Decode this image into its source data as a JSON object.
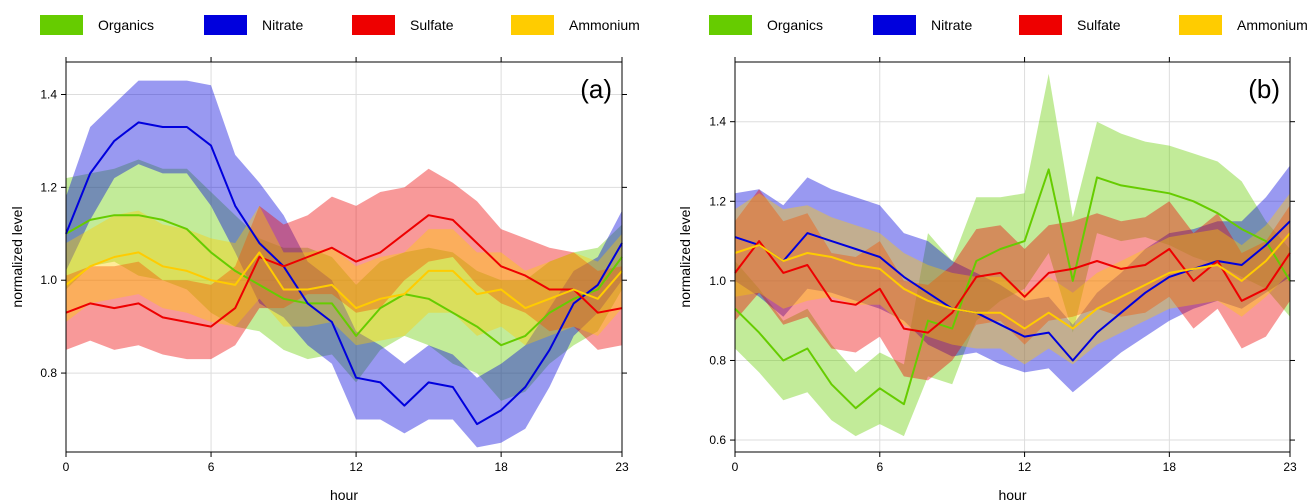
{
  "chart_data": [
    {
      "type": "line",
      "panel_label": "(a)",
      "xlabel": "hour",
      "ylabel": "normalized level",
      "xlim": [
        0,
        23
      ],
      "ylim": [
        0.63,
        1.47
      ],
      "x_ticks": [
        0,
        6,
        12,
        18,
        23
      ],
      "y_ticks": [
        0.8,
        1.0,
        1.2,
        1.4
      ],
      "x_tick_labels": [
        "0",
        "6",
        "12",
        "18",
        "23"
      ],
      "y_tick_labels": [
        "0.8",
        "1.0",
        "1.2",
        "1.4"
      ],
      "grid": true,
      "legend_position": "top",
      "x": [
        0,
        1,
        2,
        3,
        4,
        5,
        6,
        7,
        8,
        9,
        10,
        11,
        12,
        13,
        14,
        15,
        16,
        17,
        18,
        19,
        20,
        21,
        22,
        23
      ],
      "series": [
        {
          "name": "Organics",
          "color": "#66cc00",
          "values": [
            1.1,
            1.13,
            1.14,
            1.14,
            1.13,
            1.11,
            1.06,
            1.02,
            0.99,
            0.96,
            0.95,
            0.95,
            0.88,
            0.94,
            0.97,
            0.96,
            0.93,
            0.9,
            0.86,
            0.88,
            0.93,
            0.96,
            0.98,
            1.05
          ],
          "upper": [
            1.22,
            1.23,
            1.24,
            1.26,
            1.24,
            1.24,
            1.19,
            1.14,
            1.09,
            1.07,
            1.07,
            1.05,
            0.99,
            1.04,
            1.06,
            1.07,
            1.06,
            1.02,
            1.0,
            1.0,
            1.04,
            1.06,
            1.07,
            1.12
          ],
          "lower": [
            0.98,
            1.03,
            1.04,
            1.01,
            1.0,
            0.98,
            0.93,
            0.9,
            0.89,
            0.85,
            0.83,
            0.84,
            0.78,
            0.85,
            0.88,
            0.86,
            0.82,
            0.8,
            0.74,
            0.76,
            0.82,
            0.86,
            0.89,
            0.98
          ]
        },
        {
          "name": "Nitrate",
          "color": "#0000dd",
          "values": [
            1.1,
            1.23,
            1.3,
            1.34,
            1.33,
            1.33,
            1.29,
            1.16,
            1.08,
            1.03,
            0.95,
            0.91,
            0.79,
            0.78,
            0.73,
            0.78,
            0.77,
            0.69,
            0.72,
            0.77,
            0.85,
            0.95,
            0.99,
            1.08
          ],
          "upper": [
            1.18,
            1.33,
            1.38,
            1.43,
            1.43,
            1.43,
            1.42,
            1.27,
            1.21,
            1.14,
            1.04,
            1.0,
            0.89,
            0.86,
            0.82,
            0.86,
            0.84,
            0.79,
            0.82,
            0.86,
            0.94,
            1.02,
            1.05,
            1.15
          ],
          "lower": [
            1.02,
            1.13,
            1.22,
            1.25,
            1.23,
            1.23,
            1.16,
            1.06,
            0.95,
            0.92,
            0.86,
            0.82,
            0.7,
            0.7,
            0.67,
            0.7,
            0.7,
            0.64,
            0.65,
            0.68,
            0.77,
            0.88,
            0.93,
            1.0
          ]
        },
        {
          "name": "Sulfate",
          "color": "#ee0000",
          "values": [
            0.93,
            0.95,
            0.94,
            0.95,
            0.92,
            0.91,
            0.9,
            0.94,
            1.05,
            1.03,
            1.05,
            1.07,
            1.04,
            1.06,
            1.1,
            1.14,
            1.13,
            1.08,
            1.03,
            1.01,
            0.98,
            0.98,
            0.93,
            0.94
          ],
          "upper": [
            1.01,
            1.03,
            1.03,
            1.04,
            1.0,
            1.0,
            0.99,
            1.03,
            1.16,
            1.12,
            1.14,
            1.18,
            1.16,
            1.19,
            1.2,
            1.24,
            1.21,
            1.17,
            1.11,
            1.09,
            1.07,
            1.06,
            1.02,
            1.03
          ],
          "lower": [
            0.85,
            0.87,
            0.85,
            0.86,
            0.84,
            0.83,
            0.83,
            0.86,
            0.94,
            0.94,
            0.97,
            0.97,
            0.93,
            0.94,
            1.0,
            1.04,
            1.05,
            0.99,
            0.95,
            0.93,
            0.89,
            0.9,
            0.85,
            0.86
          ]
        },
        {
          "name": "Ammonium",
          "color": "#ffcc00",
          "values": [
            0.99,
            1.03,
            1.05,
            1.06,
            1.03,
            1.02,
            1.0,
            0.99,
            1.06,
            0.98,
            0.98,
            0.99,
            0.94,
            0.96,
            0.97,
            1.02,
            1.02,
            0.97,
            0.98,
            0.94,
            0.96,
            0.98,
            0.96,
            1.02
          ],
          "upper": [
            1.08,
            1.11,
            1.14,
            1.15,
            1.12,
            1.11,
            1.09,
            1.08,
            1.16,
            1.06,
            1.06,
            1.07,
            1.03,
            1.05,
            1.06,
            1.11,
            1.11,
            1.06,
            1.06,
            1.02,
            1.04,
            1.06,
            1.04,
            1.1
          ],
          "lower": [
            0.91,
            0.95,
            0.96,
            0.97,
            0.94,
            0.93,
            0.91,
            0.9,
            0.96,
            0.9,
            0.9,
            0.91,
            0.86,
            0.87,
            0.88,
            0.93,
            0.93,
            0.88,
            0.9,
            0.86,
            0.88,
            0.9,
            0.88,
            0.94
          ]
        }
      ]
    },
    {
      "type": "line",
      "panel_label": "(b)",
      "xlabel": "hour",
      "ylabel": "normalized level",
      "xlim": [
        0,
        23
      ],
      "ylim": [
        0.57,
        1.55
      ],
      "x_ticks": [
        0,
        6,
        12,
        18,
        23
      ],
      "y_ticks": [
        0.6,
        0.8,
        1.0,
        1.2,
        1.4
      ],
      "x_tick_labels": [
        "0",
        "6",
        "12",
        "18",
        "23"
      ],
      "y_tick_labels": [
        "0.6",
        "0.8",
        "1.0",
        "1.2",
        "1.4"
      ],
      "grid": true,
      "legend_position": "top",
      "x": [
        0,
        1,
        2,
        3,
        4,
        5,
        6,
        7,
        8,
        9,
        10,
        11,
        12,
        13,
        14,
        15,
        16,
        17,
        18,
        19,
        20,
        21,
        22,
        23
      ],
      "series": [
        {
          "name": "Organics",
          "color": "#66cc00",
          "values": [
            0.93,
            0.87,
            0.8,
            0.83,
            0.74,
            0.68,
            0.73,
            0.69,
            0.9,
            0.88,
            1.05,
            1.08,
            1.1,
            1.28,
            1.0,
            1.26,
            1.24,
            1.23,
            1.22,
            1.2,
            1.17,
            1.13,
            1.1,
            1.0
          ],
          "upper": [
            1.05,
            0.98,
            0.9,
            0.93,
            0.84,
            0.77,
            0.82,
            0.79,
            1.12,
            1.05,
            1.21,
            1.21,
            1.22,
            1.52,
            1.16,
            1.4,
            1.37,
            1.35,
            1.34,
            1.32,
            1.3,
            1.25,
            1.15,
            1.08
          ],
          "lower": [
            0.83,
            0.77,
            0.7,
            0.72,
            0.65,
            0.61,
            0.64,
            0.61,
            0.76,
            0.74,
            0.9,
            0.95,
            0.98,
            1.07,
            0.87,
            1.12,
            1.1,
            1.11,
            1.09,
            1.06,
            1.04,
            1.01,
            0.98,
            0.91
          ]
        },
        {
          "name": "Nitrate",
          "color": "#0000dd",
          "values": [
            1.11,
            1.09,
            1.05,
            1.12,
            1.1,
            1.08,
            1.06,
            1.01,
            0.97,
            0.93,
            0.92,
            0.89,
            0.86,
            0.87,
            0.8,
            0.87,
            0.92,
            0.97,
            1.01,
            1.03,
            1.05,
            1.04,
            1.09,
            1.15
          ],
          "upper": [
            1.22,
            1.23,
            1.19,
            1.26,
            1.23,
            1.21,
            1.19,
            1.12,
            1.1,
            1.05,
            1.02,
            0.99,
            0.95,
            0.96,
            0.89,
            0.97,
            1.02,
            1.08,
            1.12,
            1.13,
            1.15,
            1.15,
            1.21,
            1.29
          ],
          "lower": [
            1.0,
            0.96,
            0.91,
            0.98,
            0.97,
            0.95,
            0.93,
            0.9,
            0.84,
            0.81,
            0.82,
            0.79,
            0.77,
            0.78,
            0.72,
            0.77,
            0.82,
            0.86,
            0.9,
            0.93,
            0.95,
            0.93,
            0.97,
            1.01
          ]
        },
        {
          "name": "Sulfate",
          "color": "#ee0000",
          "values": [
            1.02,
            1.1,
            1.02,
            1.04,
            0.95,
            0.94,
            0.98,
            0.88,
            0.87,
            0.92,
            1.01,
            1.02,
            0.96,
            1.02,
            1.03,
            1.05,
            1.03,
            1.04,
            1.08,
            1.0,
            1.05,
            0.95,
            0.98,
            1.07
          ],
          "upper": [
            1.15,
            1.23,
            1.15,
            1.17,
            1.07,
            1.06,
            1.1,
            1.0,
            0.99,
            1.04,
            1.13,
            1.14,
            1.08,
            1.14,
            1.15,
            1.17,
            1.15,
            1.16,
            1.2,
            1.12,
            1.17,
            1.07,
            1.1,
            1.19
          ],
          "lower": [
            0.9,
            0.97,
            0.89,
            0.91,
            0.83,
            0.82,
            0.86,
            0.76,
            0.75,
            0.8,
            0.89,
            0.9,
            0.84,
            0.9,
            0.91,
            0.93,
            0.91,
            0.92,
            0.96,
            0.88,
            0.93,
            0.83,
            0.86,
            0.95
          ]
        },
        {
          "name": "Ammonium",
          "color": "#ffcc00",
          "values": [
            1.07,
            1.09,
            1.05,
            1.07,
            1.06,
            1.04,
            1.03,
            0.98,
            0.95,
            0.93,
            0.92,
            0.92,
            0.88,
            0.92,
            0.88,
            0.93,
            0.96,
            0.99,
            1.02,
            1.03,
            1.04,
            1.0,
            1.05,
            1.12
          ],
          "upper": [
            1.18,
            1.22,
            1.18,
            1.19,
            1.16,
            1.14,
            1.12,
            1.07,
            1.04,
            1.02,
            1.01,
            1.01,
            0.97,
            1.01,
            0.97,
            1.02,
            1.05,
            1.08,
            1.11,
            1.12,
            1.13,
            1.09,
            1.14,
            1.22
          ],
          "lower": [
            0.96,
            0.97,
            0.93,
            0.95,
            0.96,
            0.94,
            0.94,
            0.89,
            0.86,
            0.84,
            0.83,
            0.83,
            0.79,
            0.83,
            0.79,
            0.84,
            0.87,
            0.9,
            0.93,
            0.94,
            0.95,
            0.91,
            0.96,
            1.02
          ]
        }
      ]
    }
  ]
}
